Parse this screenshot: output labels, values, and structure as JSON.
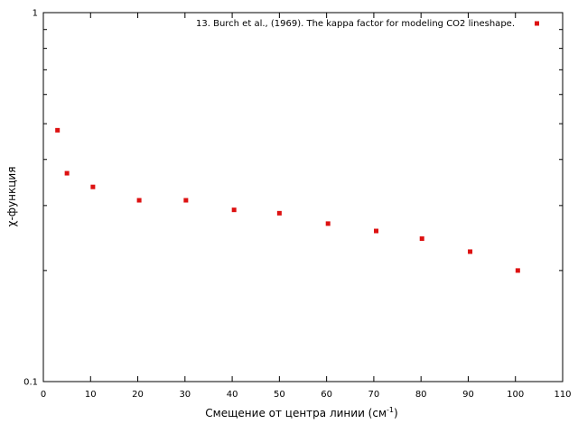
{
  "chart_data": {
    "type": "scatter",
    "title": "",
    "xlabel": "Смещение от центра линии (см",
    "xlabel_superscript": "-1",
    "xlabel_suffix": ")",
    "ylabel": "χ-функция",
    "xlim": [
      0,
      110
    ],
    "ylim": [
      0.1,
      1
    ],
    "y_scale": "log",
    "grid": false,
    "legend_position": "top-right",
    "x_ticks": [
      {
        "value": 0,
        "label": "0"
      },
      {
        "value": 10,
        "label": "10"
      },
      {
        "value": 20,
        "label": "20"
      },
      {
        "value": 30,
        "label": "30"
      },
      {
        "value": 40,
        "label": "40"
      },
      {
        "value": 50,
        "label": "50"
      },
      {
        "value": 60,
        "label": "60"
      },
      {
        "value": 70,
        "label": "70"
      },
      {
        "value": 80,
        "label": "80"
      },
      {
        "value": 90,
        "label": "90"
      },
      {
        "value": 100,
        "label": "100"
      },
      {
        "value": 110,
        "label": "110"
      }
    ],
    "y_ticks": [
      {
        "value": 0.1,
        "label": "0.1"
      },
      {
        "value": 1,
        "label": "1"
      }
    ],
    "series": [
      {
        "name": "13. Burch et al., (1969). The kappa factor for modeling CO2 lineshape.",
        "color": "#dd1111",
        "marker": "square",
        "points": [
          {
            "x": 3,
            "y": 0.48
          },
          {
            "x": 5,
            "y": 0.367
          },
          {
            "x": 10.5,
            "y": 0.337
          },
          {
            "x": 20.3,
            "y": 0.31
          },
          {
            "x": 30.2,
            "y": 0.31
          },
          {
            "x": 40.4,
            "y": 0.292
          },
          {
            "x": 50,
            "y": 0.286
          },
          {
            "x": 60.3,
            "y": 0.268
          },
          {
            "x": 70.5,
            "y": 0.256
          },
          {
            "x": 80.2,
            "y": 0.244
          },
          {
            "x": 90.4,
            "y": 0.225
          },
          {
            "x": 100.5,
            "y": 0.2
          }
        ]
      }
    ]
  }
}
